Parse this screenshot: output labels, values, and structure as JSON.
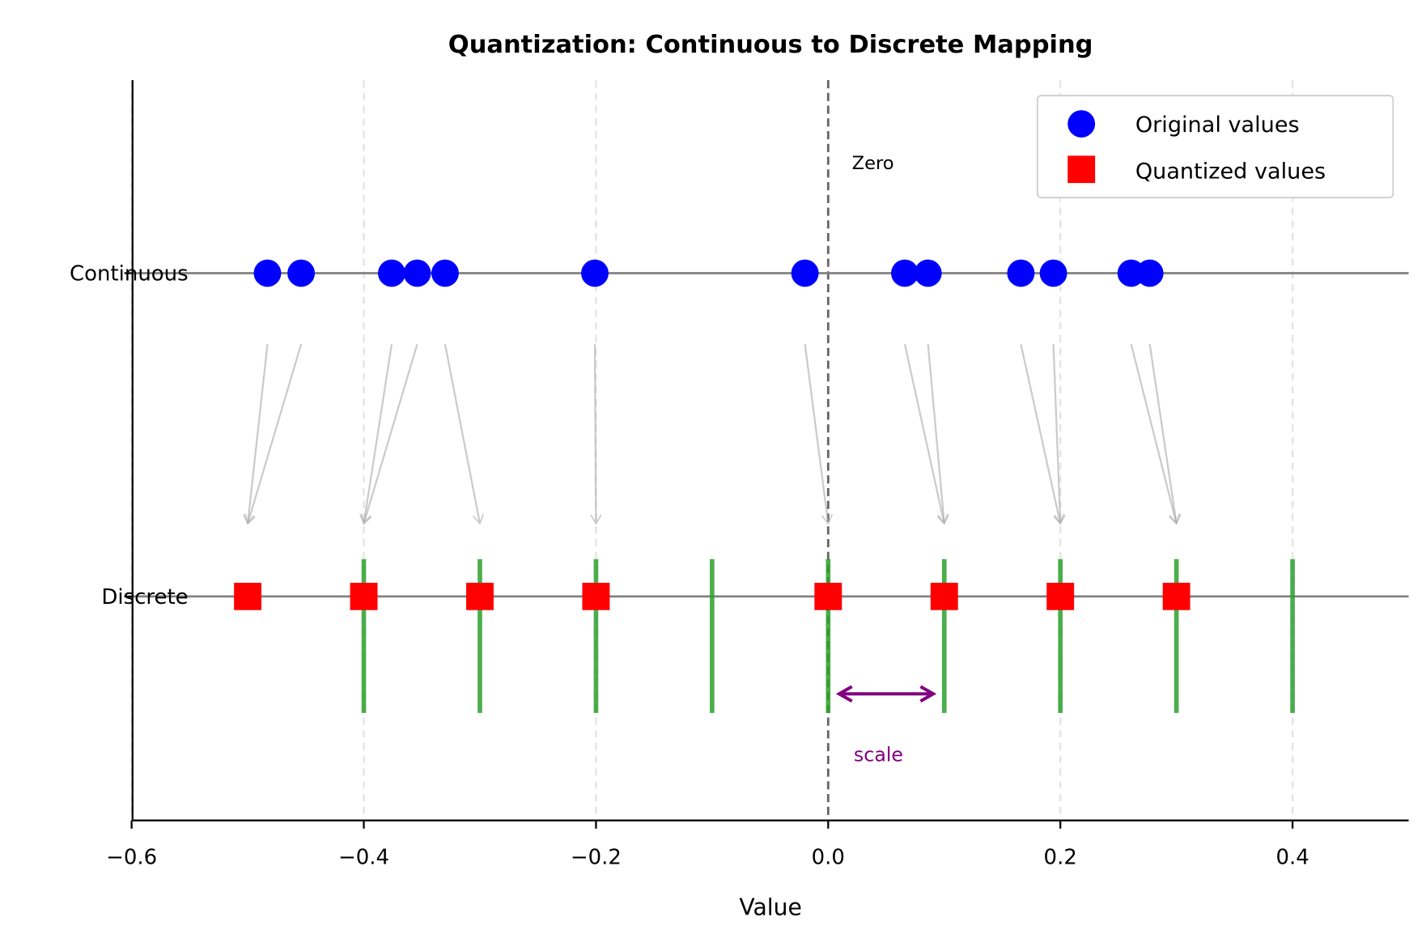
{
  "chart_data": {
    "type": "scatter",
    "title": "Quantization: Continuous to Discrete Mapping",
    "xlabel": "Value",
    "ylabel": "",
    "xlim": [
      -0.6,
      0.5
    ],
    "x_ticks": [
      "−0.6",
      "−0.4",
      "−0.2",
      "0.0",
      "0.2",
      "0.4"
    ],
    "x_tick_values": [
      -0.6,
      -0.4,
      -0.2,
      0.0,
      0.2,
      0.4
    ],
    "y_tick_labels": [
      "Continuous",
      "Discrete"
    ],
    "grid": "vertical dashed at x ticks",
    "legend_position": "top-right",
    "series": [
      {
        "name": "Original values",
        "marker": "circle",
        "color": "#0000ff",
        "x": [
          -0.483,
          -0.454,
          -0.376,
          -0.354,
          -0.33,
          -0.201,
          -0.02,
          0.066,
          0.086,
          0.166,
          0.194,
          0.261,
          0.277
        ]
      },
      {
        "name": "Quantized values",
        "marker": "square",
        "color": "#ff0000",
        "x": [
          -0.5,
          -0.5,
          -0.4,
          -0.4,
          -0.3,
          -0.2,
          0.0,
          0.1,
          0.1,
          0.2,
          0.2,
          0.3,
          0.3
        ]
      }
    ],
    "quantization_levels": [
      -0.4,
      -0.3,
      -0.2,
      -0.1,
      0.0,
      0.1,
      0.2,
      0.3,
      0.4
    ],
    "level_color": "#2ca02c",
    "annotations": {
      "zero_label": "Zero",
      "scale_label": "scale",
      "scale_color": "#800080",
      "scale_range": [
        0.0,
        0.1
      ]
    }
  }
}
